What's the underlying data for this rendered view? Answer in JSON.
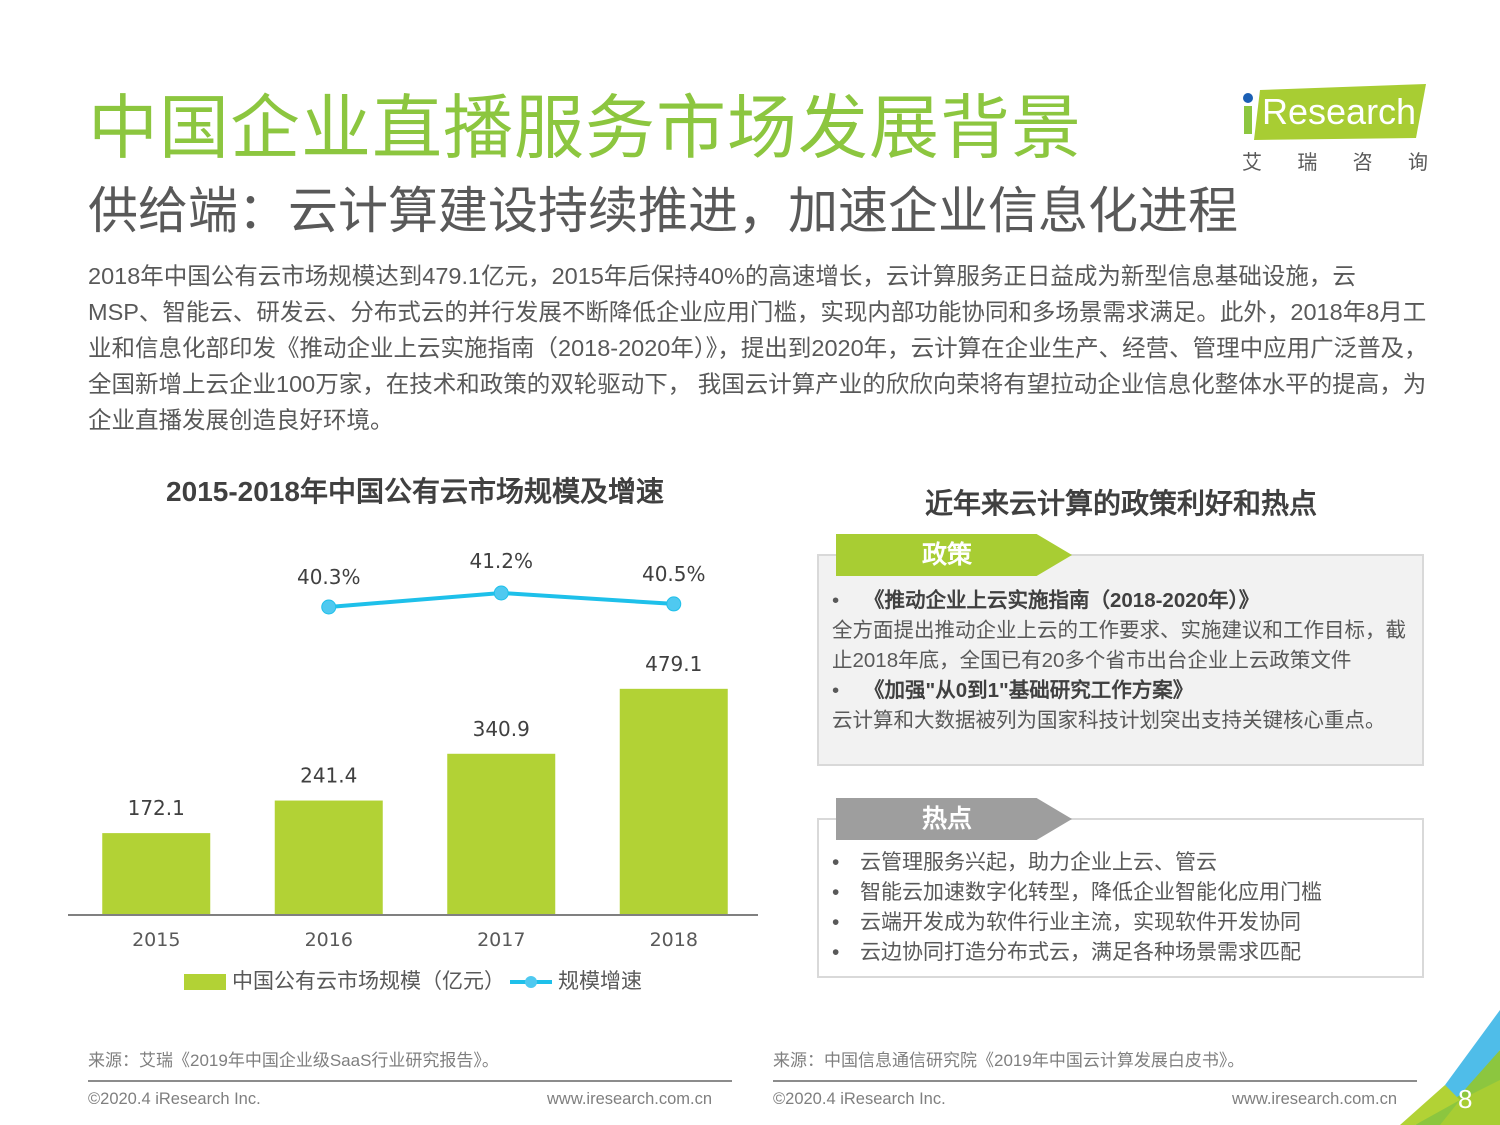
{
  "header": {
    "title": "中国企业直播服务市场发展背景",
    "subtitle": "供给端：云计算建设持续推进，加速企业信息化进程"
  },
  "logo": {
    "brand": "Research",
    "brand_prefix": "i",
    "cn_chars": [
      "艾",
      "瑞",
      "咨",
      "询"
    ]
  },
  "intro": "2018年中国公有云市场规模达到479.1亿元，2015年后保持40%的高速增长，云计算服务正日益成为新型信息基础设施，云MSP、智能云、研发云、分布式云的并行发展不断降低企业应用门槛，实现内部功能协同和多场景需求满足。此外，2018年8月工业和信息化部印发《推动企业上云实施指南（2018-2020年）》，提出到2020年，云计算在企业生产、经营、管理中应用广泛普及，全国新增上云企业100万家，在技术和政策的双轮驱动下， 我国云计算产业的欣欣向荣将有望拉动企业信息化整体水平的提高，为企业直播发展创造良好环境。",
  "chart_data": {
    "type": "bar",
    "title": "2015-2018年中国公有云市场规模及增速",
    "categories": [
      "2015",
      "2016",
      "2017",
      "2018"
    ],
    "series": [
      {
        "name": "中国公有云市场规模（亿元）",
        "type": "bar",
        "values": [
          172.1,
          241.4,
          340.9,
          479.1
        ],
        "labels": [
          "172.1",
          "241.4",
          "340.9",
          "479.1"
        ],
        "color": "#b2d235"
      },
      {
        "name": "规模增速",
        "type": "line",
        "values": [
          null,
          40.3,
          41.2,
          40.5
        ],
        "labels": [
          "",
          "40.3%",
          "41.2%",
          "40.5%"
        ],
        "color": "#1ec0ea"
      }
    ],
    "xlabel": "",
    "ylabel": "",
    "grid": false,
    "legend_position": "bottom",
    "legend": [
      "中国公有云市场规模（亿元）",
      "规模增速"
    ]
  },
  "panel": {
    "title": "近年来云计算的政策利好和热点",
    "policy": {
      "tab": "政策",
      "items": [
        {
          "heading": "《推动企业上云实施指南（2018-2020年）》",
          "body": "全方面提出推动企业上云的工作要求、实施建议和工作目标，截止2018年底，全国已有20多个省市出台企业上云政策文件"
        },
        {
          "heading": "《加强\"从0到1\"基础研究工作方案》",
          "body": "云计算和大数据被列为国家科技计划突出支持关键核心重点。"
        }
      ]
    },
    "hot": {
      "tab": "热点",
      "items": [
        "云管理服务兴起，助力企业上云、管云",
        "智能云加速数字化转型，降低企业智能化应用门槛",
        "云端开发成为软件行业主流，实现软件开发协同",
        "云边协同打造分布式云，满足各种场景需求匹配"
      ]
    },
    "bullet": "•"
  },
  "footer": {
    "source_left": "来源：艾瑞《2019年中国企业级SaaS行业研究报告》。",
    "source_right": "来源：中国信息通信研究院《2019年中国云计算发展白皮书》。",
    "copyright": "©2020.4 iResearch Inc.",
    "url": "www.iresearch.com.cn",
    "page": "8"
  },
  "colors": {
    "title_green": "#8cc63f",
    "bar_green": "#b2d235",
    "line_blue": "#1ec0ea",
    "tab_gray": "#9e9e9e",
    "logo_blue": "#1b5fb4"
  }
}
